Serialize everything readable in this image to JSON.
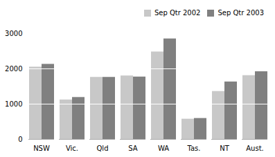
{
  "chart_data": {
    "type": "bar",
    "categories": [
      "NSW",
      "Vic.",
      "Qld",
      "SA",
      "WA",
      "Tas.",
      "NT",
      "Aust."
    ],
    "series": [
      {
        "name": "Sep Qtr 2002",
        "color": "#c8c8c8",
        "values": [
          2050,
          1120,
          1760,
          1800,
          2480,
          575,
          1360,
          1810
        ]
      },
      {
        "name": "Sep Qtr 2003",
        "color": "#808080",
        "values": [
          2130,
          1190,
          1760,
          1770,
          2850,
          595,
          1630,
          1920
        ]
      }
    ],
    "ylim": [
      0,
      3000
    ],
    "yticks": [
      0,
      1000,
      2000,
      3000
    ],
    "grid": true,
    "legend": "top-right"
  }
}
